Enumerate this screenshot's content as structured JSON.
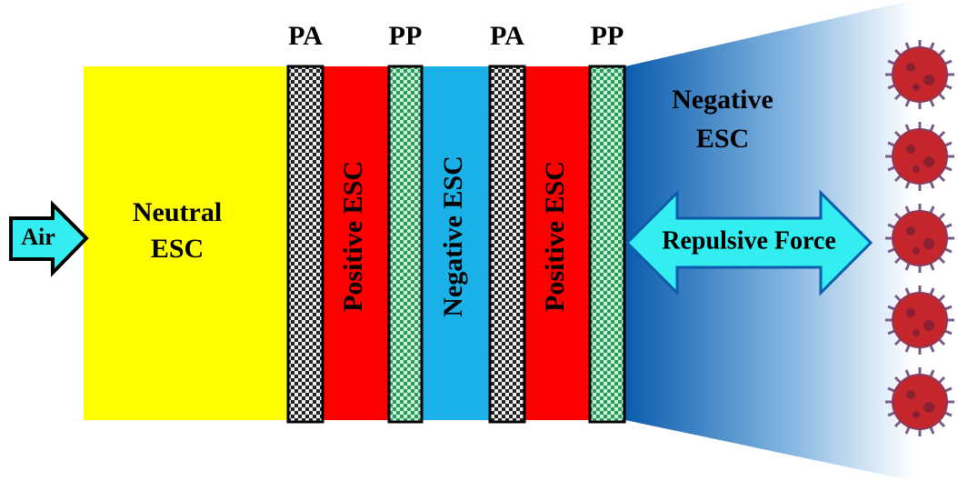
{
  "top_labels": [
    "PA",
    "PP",
    "PA",
    "PP"
  ],
  "regions": {
    "neutral": [
      "Neutral",
      "ESC"
    ],
    "positive_1": "Positive ESC",
    "negative_1": "Negative ESC",
    "positive_2": "Positive ESC",
    "negative_outer": [
      "Negative",
      "ESC"
    ]
  },
  "arrows": {
    "air": "Air",
    "force": "Repulsive Force"
  }
}
